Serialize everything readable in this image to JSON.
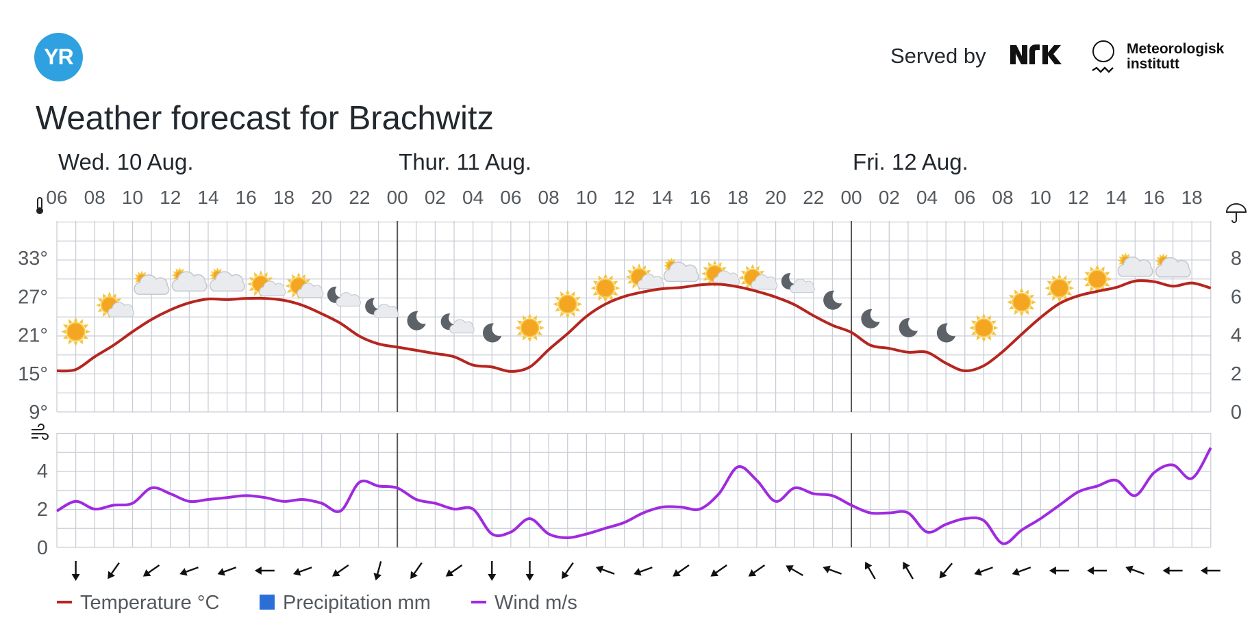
{
  "header": {
    "logo_text": "YR",
    "served_by": "Served by",
    "nrk_logo": "NRK",
    "met_line1": "Meteorologisk",
    "met_line2": "institutt"
  },
  "title": "Weather forecast for Brachwitz",
  "days": [
    "Wed. 10 Aug.",
    "Thur. 11 Aug.",
    "Fri. 12 Aug."
  ],
  "hours": [
    "06",
    "08",
    "10",
    "12",
    "14",
    "16",
    "18",
    "20",
    "22",
    "00",
    "02",
    "04",
    "06",
    "08",
    "10",
    "12",
    "14",
    "16",
    "18",
    "20",
    "22",
    "00",
    "02",
    "04",
    "06",
    "08",
    "10",
    "12",
    "14",
    "16",
    "18"
  ],
  "legend": {
    "temperature": "Temperature °C",
    "precipitation": "Precipitation mm",
    "wind": "Wind m/s"
  },
  "colors": {
    "temperature": "#b5261f",
    "precipitation": "#2b6fd6",
    "wind": "#9f2ae0",
    "grid": "#c9ced6",
    "day_divider": "#555555"
  },
  "icons": {
    "temperature_axis": "thermometer-icon",
    "precipitation_axis": "umbrella-icon",
    "wind_axis": "wind-icon"
  },
  "chart_data": [
    {
      "type": "line",
      "name": "temperature-chart",
      "x_unit": "hours from Wed 10 Aug 06:00",
      "ylabel_left": "°C",
      "ylabel_right": "mm",
      "ylim": [
        9,
        33
      ],
      "yticks": [
        "9°",
        "15°",
        "21°",
        "27°",
        "33°"
      ],
      "ylim_right": [
        0,
        8
      ],
      "yticks_right": [
        "0",
        "2",
        "4",
        "6",
        "8"
      ],
      "grid": true,
      "series": [
        {
          "name": "Temperature °C",
          "x": [
            0,
            1,
            2,
            3,
            4,
            5,
            6,
            7,
            8,
            9,
            10,
            11,
            12,
            13,
            14,
            15,
            16,
            17,
            18,
            19,
            20,
            21,
            22,
            23,
            24,
            25,
            26,
            27,
            28,
            29,
            30,
            31,
            32,
            33,
            34,
            35,
            36,
            37,
            38,
            39,
            40,
            41,
            42,
            43,
            44,
            45,
            46,
            47,
            48,
            49,
            50,
            51,
            52,
            53,
            54,
            55,
            56,
            57,
            58,
            59,
            60,
            61
          ],
          "values": [
            15.4,
            15.6,
            17.6,
            19.4,
            21.5,
            23.4,
            24.9,
            26,
            26.6,
            26.5,
            26.7,
            26.7,
            26.4,
            25.6,
            24.3,
            22.8,
            20.8,
            19.6,
            19.1,
            18.6,
            18.1,
            17.6,
            16.3,
            16,
            15.3,
            16,
            18.7,
            21.2,
            23.9,
            25.8,
            27,
            27.7,
            28.2,
            28.4,
            28.8,
            28.9,
            28.5,
            27.8,
            26.9,
            25.7,
            24,
            22.5,
            21.4,
            19.4,
            18.9,
            18.3,
            18.3,
            16.6,
            15.4,
            16.2,
            18.4,
            21.1,
            23.7,
            25.9,
            27.1,
            27.8,
            28.4,
            29.4,
            29.3,
            28.6,
            29.1,
            28.3
          ]
        },
        {
          "name": "Precipitation mm",
          "values": []
        }
      ],
      "weather_symbols": [
        "clear-day",
        "partly-cloudy-day",
        "cloudy",
        "cloudy",
        "cloudy",
        "partly-cloudy-day",
        "partly-cloudy-day",
        "partly-cloudy-night",
        "partly-cloudy-night",
        "clear-night",
        "partly-cloudy-night",
        "clear-night",
        "clear-day",
        "clear-day",
        "clear-day",
        "partly-cloudy-day",
        "cloudy",
        "partly-cloudy-day",
        "partly-cloudy-day",
        "partly-cloudy-night",
        "clear-night",
        "clear-night",
        "clear-night",
        "clear-night",
        "clear-day",
        "clear-day",
        "clear-day",
        "clear-day",
        "cloudy",
        "cloudy"
      ],
      "weather_symbol_x": [
        1,
        3,
        5,
        7,
        9,
        11,
        13,
        15,
        17,
        19,
        21,
        23,
        25,
        27,
        29,
        31,
        33,
        35,
        37,
        39,
        41,
        43,
        45,
        47,
        49,
        51,
        53,
        55,
        57,
        59
      ],
      "weather_symbol_temp": [
        21.5,
        25,
        28.3,
        28.8,
        28.8,
        28.3,
        28,
        26.6,
        24.8,
        23.2,
        22.4,
        21.3,
        22.1,
        25.8,
        28.3,
        29.4,
        30.3,
        29.9,
        29.3,
        28.7,
        26.4,
        23.5,
        22.1,
        21.3,
        22.1,
        26.1,
        28.3,
        29.7,
        31.1,
        31
      ]
    },
    {
      "type": "line",
      "name": "wind-chart",
      "x_unit": "hours from Wed 10 Aug 06:00",
      "ylabel": "m/s",
      "ylim": [
        0,
        6
      ],
      "yticks": [
        "0",
        "2",
        "4"
      ],
      "grid": true,
      "series": [
        {
          "name": "Wind m/s",
          "x": [
            0,
            1,
            2,
            3,
            4,
            5,
            6,
            7,
            8,
            9,
            10,
            11,
            12,
            13,
            14,
            15,
            16,
            17,
            18,
            19,
            20,
            21,
            22,
            23,
            24,
            25,
            26,
            27,
            28,
            29,
            30,
            31,
            32,
            33,
            34,
            35,
            36,
            37,
            38,
            39,
            40,
            41,
            42,
            43,
            44,
            45,
            46,
            47,
            48,
            49,
            50,
            51,
            52,
            53,
            54,
            55,
            56,
            57,
            58,
            59,
            60,
            61
          ],
          "values": [
            1.9,
            2.4,
            2,
            2.2,
            2.3,
            3.1,
            2.8,
            2.4,
            2.5,
            2.6,
            2.7,
            2.6,
            2.4,
            2.5,
            2.3,
            1.9,
            3.4,
            3.2,
            3.1,
            2.5,
            2.3,
            2,
            2,
            0.7,
            0.8,
            1.5,
            0.7,
            0.5,
            0.7,
            1,
            1.3,
            1.8,
            2.1,
            2.1,
            2,
            2.8,
            4.2,
            3.5,
            2.4,
            3.1,
            2.8,
            2.7,
            2.2,
            1.8,
            1.8,
            1.8,
            0.8,
            1.2,
            1.5,
            1.4,
            0.2,
            0.9,
            1.5,
            2.2,
            2.9,
            3.2,
            3.5,
            2.7,
            3.9,
            4.3,
            3.6,
            5.2
          ]
        }
      ],
      "wind_arrow_x": [
        1,
        3,
        5,
        7,
        9,
        11,
        13,
        15,
        17,
        19,
        21,
        23,
        25,
        27,
        29,
        31,
        33,
        35,
        37,
        39,
        41,
        43,
        45,
        47,
        49,
        51,
        53,
        55,
        57,
        59,
        61
      ],
      "wind_from_deg": [
        0,
        35,
        55,
        70,
        70,
        90,
        70,
        55,
        15,
        35,
        55,
        0,
        0,
        35,
        110,
        70,
        55,
        55,
        55,
        120,
        110,
        150,
        150,
        40,
        70,
        70,
        90,
        90,
        110,
        90,
        90
      ]
    }
  ]
}
